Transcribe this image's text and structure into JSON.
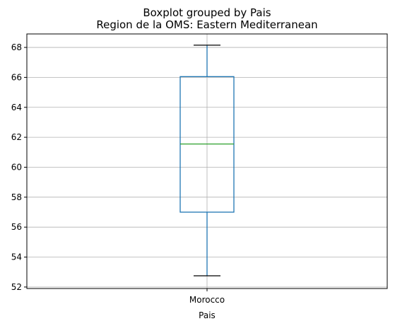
{
  "chart_data": {
    "type": "boxplot",
    "suptitle": "Boxplot grouped by Pais",
    "title": "Region de la OMS: Eastern Mediterranean",
    "xlabel": "Pais",
    "ylabel": "",
    "categories": [
      "Morocco"
    ],
    "boxes": [
      {
        "category": "Morocco",
        "whisker_low": 52.75,
        "q1": 57.0,
        "median": 61.55,
        "q3": 66.05,
        "whisker_high": 68.15
      }
    ],
    "ylim": [
      51.9,
      68.9
    ],
    "yticks": [
      "52",
      "54",
      "56",
      "58",
      "60",
      "62",
      "64",
      "66",
      "68"
    ],
    "grid": true,
    "colors": {
      "box": "#1f77b4",
      "median": "#2ca02c",
      "caps": "#000000",
      "grid": "#b0b0b0"
    }
  }
}
